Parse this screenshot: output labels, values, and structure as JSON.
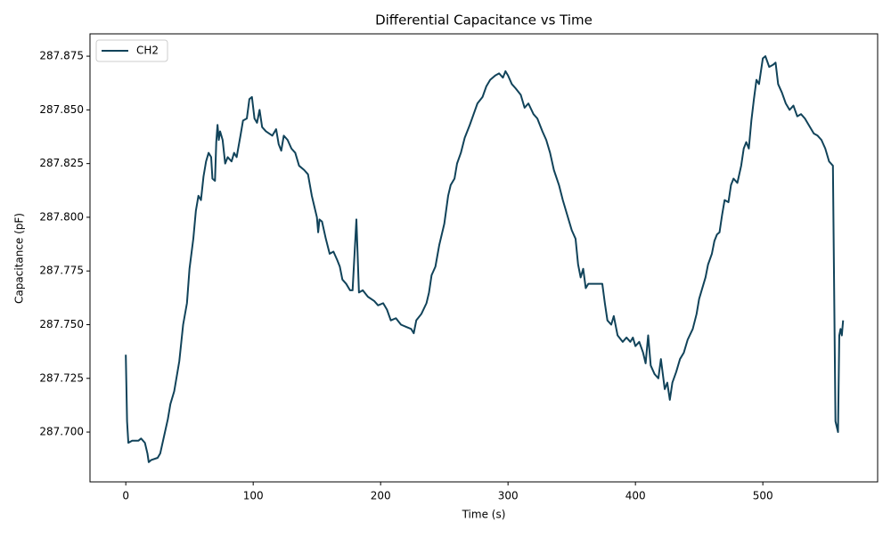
{
  "chart_data": {
    "type": "line",
    "title": "Differential Capacitance vs Time",
    "xlabel": "Time (s)",
    "ylabel": "Capacitance (pF)",
    "x": [
      0,
      1,
      2,
      5,
      10,
      12,
      15,
      17,
      18,
      20,
      25,
      27,
      30,
      33,
      35,
      38,
      42,
      45,
      48,
      50,
      53,
      55,
      57,
      59,
      61,
      63,
      65,
      67,
      68,
      70,
      71,
      72,
      73,
      74,
      76,
      78,
      80,
      83,
      85,
      87,
      90,
      92,
      95,
      97,
      99,
      101,
      103,
      105,
      107,
      110,
      115,
      118,
      120,
      122,
      124,
      127,
      130,
      133,
      136,
      140,
      143,
      146,
      148,
      150,
      151,
      152,
      154,
      157,
      160,
      163,
      166,
      168,
      170,
      173,
      176,
      178,
      181,
      183,
      186,
      190,
      195,
      198,
      202,
      205,
      208,
      212,
      216,
      220,
      224,
      226,
      228,
      232,
      236,
      238,
      240,
      243,
      246,
      250,
      253,
      255,
      258,
      260,
      263,
      266,
      270,
      273,
      276,
      280,
      283,
      286,
      290,
      293,
      296,
      298,
      300,
      303,
      306,
      310,
      313,
      316,
      320,
      323,
      327,
      330,
      333,
      336,
      340,
      343,
      346,
      350,
      353,
      355,
      357,
      359,
      361,
      363,
      366,
      370,
      374,
      376,
      378,
      381,
      383,
      386,
      390,
      393,
      396,
      398,
      400,
      403,
      406,
      408,
      410,
      412,
      415,
      418,
      420,
      423,
      425,
      427,
      429,
      432,
      435,
      438,
      441,
      445,
      448,
      450,
      453,
      455,
      457,
      460,
      462,
      464,
      466,
      468,
      470,
      473,
      475,
      477,
      480,
      483,
      485,
      487,
      489,
      491,
      493,
      495,
      497,
      500,
      502,
      505,
      508,
      510,
      512,
      515,
      518,
      521,
      524,
      527,
      530,
      533,
      536,
      540,
      543,
      546,
      549,
      552,
      555,
      557,
      559,
      560,
      561,
      562,
      563
    ],
    "series": [
      {
        "name": "CH2",
        "color": "#11435a",
        "values": [
          287.736,
          287.705,
          287.695,
          287.696,
          287.696,
          287.697,
          287.695,
          287.69,
          287.686,
          287.687,
          287.688,
          287.69,
          287.698,
          287.706,
          287.713,
          287.719,
          287.733,
          287.75,
          287.76,
          287.776,
          287.79,
          287.803,
          287.81,
          287.808,
          287.819,
          287.826,
          287.83,
          287.828,
          287.818,
          287.817,
          287.835,
          287.843,
          287.836,
          287.84,
          287.836,
          287.825,
          287.828,
          287.826,
          287.83,
          287.828,
          287.838,
          287.845,
          287.846,
          287.855,
          287.856,
          287.846,
          287.844,
          287.85,
          287.842,
          287.84,
          287.838,
          287.841,
          287.834,
          287.831,
          287.838,
          287.836,
          287.832,
          287.83,
          287.824,
          287.822,
          287.82,
          287.81,
          287.805,
          287.8,
          287.793,
          287.799,
          287.798,
          287.79,
          287.783,
          287.784,
          287.78,
          287.777,
          287.771,
          287.769,
          287.766,
          287.766,
          287.799,
          287.765,
          287.766,
          287.763,
          287.761,
          287.759,
          287.76,
          287.757,
          287.752,
          287.753,
          287.75,
          287.749,
          287.748,
          287.746,
          287.752,
          287.755,
          287.76,
          287.765,
          287.773,
          287.777,
          287.787,
          287.797,
          287.81,
          287.815,
          287.818,
          287.825,
          287.83,
          287.837,
          287.843,
          287.848,
          287.853,
          287.856,
          287.861,
          287.864,
          287.866,
          287.867,
          287.865,
          287.868,
          287.866,
          287.862,
          287.86,
          287.857,
          287.851,
          287.853,
          287.848,
          287.846,
          287.84,
          287.836,
          287.83,
          287.822,
          287.815,
          287.808,
          287.802,
          287.794,
          287.79,
          287.778,
          287.772,
          287.776,
          287.767,
          287.769,
          287.769,
          287.769,
          287.769,
          287.76,
          287.752,
          287.75,
          287.754,
          287.745,
          287.742,
          287.744,
          287.742,
          287.744,
          287.74,
          287.742,
          287.737,
          287.732,
          287.745,
          287.731,
          287.727,
          287.725,
          287.734,
          287.72,
          287.723,
          287.715,
          287.723,
          287.728,
          287.734,
          287.737,
          287.743,
          287.748,
          287.755,
          287.762,
          287.768,
          287.772,
          287.778,
          287.783,
          287.789,
          287.792,
          287.793,
          287.801,
          287.808,
          287.807,
          287.815,
          287.818,
          287.816,
          287.824,
          287.832,
          287.835,
          287.832,
          287.845,
          287.855,
          287.864,
          287.862,
          287.874,
          287.875,
          287.87,
          287.871,
          287.872,
          287.862,
          287.858,
          287.853,
          287.85,
          287.852,
          287.847,
          287.848,
          287.846,
          287.843,
          287.839,
          287.838,
          287.836,
          287.832,
          287.826,
          287.824,
          287.705,
          287.7,
          287.745,
          287.748,
          287.745,
          287.752
        ]
      }
    ],
    "xlim": [
      -28.1,
      590.1
    ],
    "xticks": [
      0,
      100,
      200,
      300,
      400,
      500
    ],
    "ylim": [
      287.6768,
      287.8854
    ],
    "yticks": [
      {
        "value": 287.7,
        "label": "287.700"
      },
      287.725,
      {
        "value": 287.75,
        "label": "287.750"
      },
      287.775,
      {
        "value": 287.8,
        "label": "287.800"
      },
      287.825,
      {
        "value": 287.85,
        "label": "287.850"
      },
      287.875
    ],
    "legend": "upper left",
    "grid": false
  }
}
